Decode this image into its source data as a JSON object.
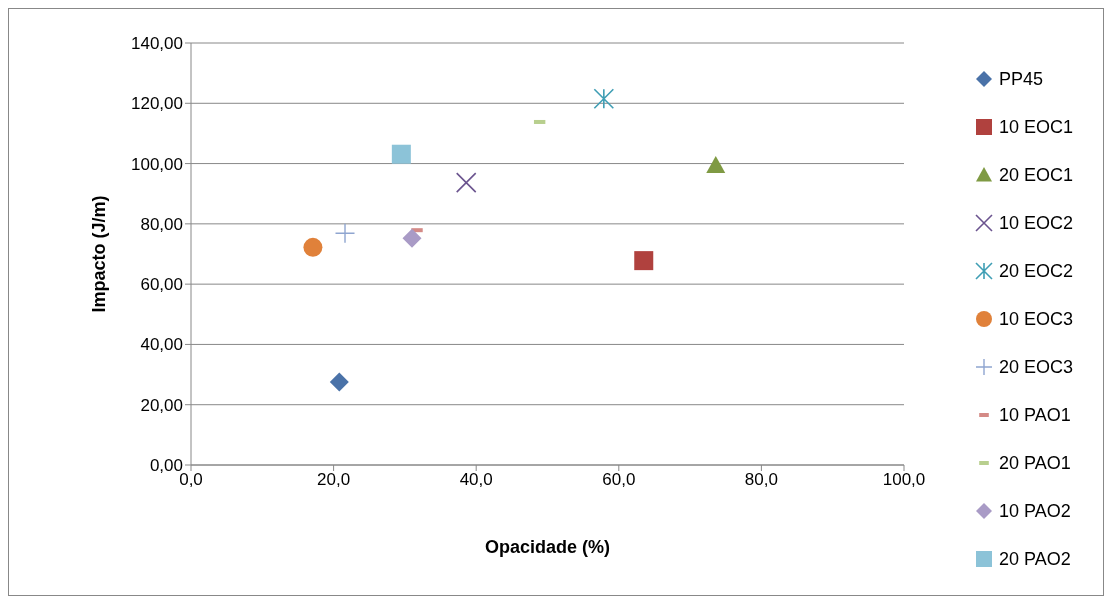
{
  "chart_data": {
    "type": "scatter",
    "xlabel": "Opacidade (%)",
    "ylabel": "Impacto (J/m)",
    "xlim": [
      0,
      100
    ],
    "xticks": [
      {
        "value": 0,
        "label": "0,0"
      },
      {
        "value": 20,
        "label": "20,0"
      },
      {
        "value": 40,
        "label": "40,0"
      },
      {
        "value": 60,
        "label": "60,0"
      },
      {
        "value": 80,
        "label": "80,0"
      },
      {
        "value": 100,
        "label": "100,0"
      }
    ],
    "ylim": [
      0,
      140
    ],
    "yticks": [
      {
        "value": 0,
        "label": "0,00"
      },
      {
        "value": 20,
        "label": "20,00"
      },
      {
        "value": 40,
        "label": "40,00"
      },
      {
        "value": 60,
        "label": "60,00"
      },
      {
        "value": 80,
        "label": "80,00"
      },
      {
        "value": 100,
        "label": "100,00"
      },
      {
        "value": 120,
        "label": "120,00"
      },
      {
        "value": 140,
        "label": "140,00"
      }
    ],
    "grid": "y",
    "legend": "right",
    "series": [
      {
        "name": "PP45",
        "color": "#4a72a8",
        "marker": "diamond",
        "x": [
          20.8
        ],
        "values": [
          27.5
        ]
      },
      {
        "name": "10 EOC1",
        "color": "#b0413e",
        "marker": "square",
        "x": [
          63.5
        ],
        "values": [
          67.8
        ]
      },
      {
        "name": "20 EOC1",
        "color": "#7f9a43",
        "marker": "triangle",
        "x": [
          73.6
        ],
        "values": [
          99.4
        ]
      },
      {
        "name": "10 EOC2",
        "color": "#6b548f",
        "marker": "x",
        "x": [
          38.6
        ],
        "values": [
          93.7
        ]
      },
      {
        "name": "20 EOC2",
        "color": "#3f9eb4",
        "marker": "cross",
        "x": [
          57.9
        ],
        "values": [
          121.5
        ]
      },
      {
        "name": "10 EOC3",
        "color": "#e0813a",
        "marker": "circle",
        "x": [
          17.1
        ],
        "values": [
          72.2
        ]
      },
      {
        "name": "20 EOC3",
        "color": "#8fa5d0",
        "marker": "plus",
        "x": [
          21.6
        ],
        "values": [
          76.9
        ]
      },
      {
        "name": "10 PAO1",
        "color": "#d48a86",
        "x": [
          31.7
        ],
        "values": [
          77.9
        ]
      },
      {
        "name": "20 PAO1",
        "color": "#b8cf8e",
        "x": [
          48.9
        ],
        "values": [
          113.8
        ]
      },
      {
        "name": "10 PAO2",
        "color": "#a99bc6",
        "marker": "diamond",
        "x": [
          31.0
        ],
        "values": [
          75.2
        ]
      },
      {
        "name": "20 PAO2",
        "color": "#8cc3d8",
        "marker": "square",
        "x": [
          29.5
        ],
        "values": [
          103.1
        ]
      }
    ]
  }
}
